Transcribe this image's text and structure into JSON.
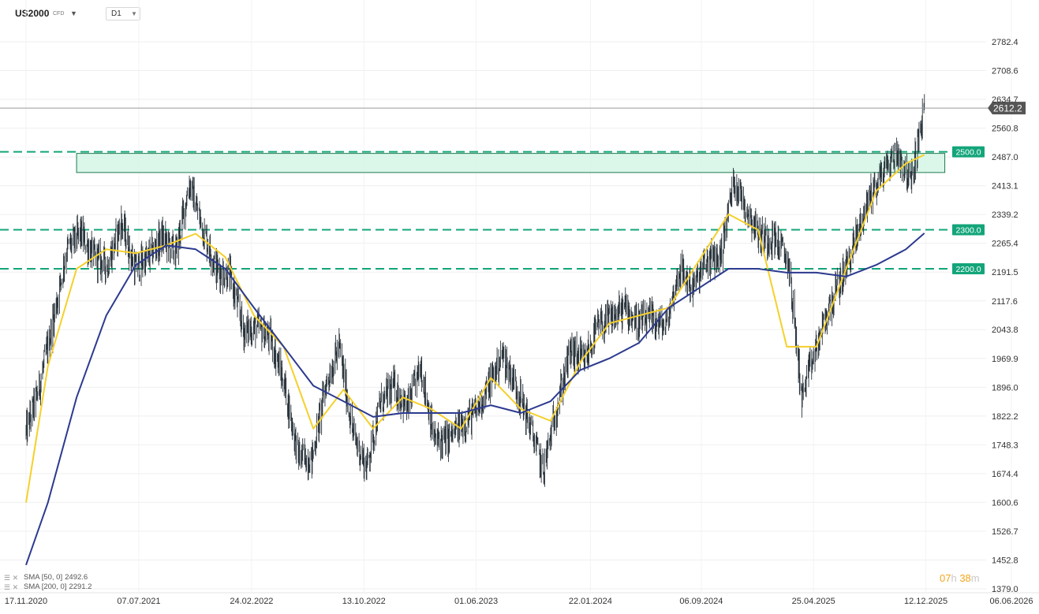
{
  "toolbar": {
    "symbol": "US2000",
    "symbol_type": "CFD",
    "timeframe": "D1"
  },
  "countdown": {
    "hours": "07",
    "hours_unit": "h",
    "minutes": "38",
    "minutes_unit": "m"
  },
  "legend": [
    {
      "label": "SMA [50, 0]",
      "value": "2492.6",
      "color": "#f5d02a"
    },
    {
      "label": "SMA [200, 0]",
      "value": "2291.2",
      "color": "#2c3a8f"
    }
  ],
  "colors": {
    "candles": "#2a343c",
    "sma50": "#f5d02a",
    "sma200": "#2c3a8f",
    "levels": "#13a57a",
    "zone_fill": "#d3f6e6",
    "zone_border": "#1e7a4e",
    "price_tag": "#555555"
  },
  "chart_data": {
    "type": "line",
    "style": "candlestick",
    "timeframe": "D1",
    "x_tick_labels": [
      "17.11.2020",
      "07.07.2021",
      "24.02.2022",
      "13.10.2022",
      "01.06.2023",
      "22.01.2024",
      "06.09.2024",
      "25.04.2025",
      "12.12.2025",
      "06.06.2026"
    ],
    "y_tick_labels": [
      "2782.4",
      "2708.6",
      "2634.7",
      "2560.8",
      "2487.0",
      "2413.1",
      "2339.2",
      "2265.4",
      "2191.5",
      "2117.6",
      "2043.8",
      "1969.9",
      "1896.0",
      "1822.2",
      "1748.3",
      "1674.4",
      "1600.6",
      "1526.7",
      "1452.8",
      "1379.0"
    ],
    "ylim": [
      1379.0,
      2782.4
    ],
    "last_price": "2612.2",
    "levels": [
      {
        "value": 2500.0,
        "label": "2500.0"
      },
      {
        "value": 2300.0,
        "label": "2300.0"
      },
      {
        "value": 2200.0,
        "label": "2200.0"
      }
    ],
    "resistance_zone": {
      "from_date": "2021-03-01",
      "to_date": "2026-01-20",
      "low": 2447,
      "high": 2496
    },
    "series": [
      {
        "name": "Price",
        "dates": [
          "2020-11-17",
          "2020-12-15",
          "2021-01-12",
          "2021-02-09",
          "2021-03-09",
          "2021-04-06",
          "2021-05-04",
          "2021-06-01",
          "2021-06-29",
          "2021-07-27",
          "2021-08-24",
          "2021-09-21",
          "2021-10-19",
          "2021-11-16",
          "2021-12-14",
          "2022-01-11",
          "2022-02-08",
          "2022-03-08",
          "2022-04-05",
          "2022-05-03",
          "2022-05-31",
          "2022-06-28",
          "2022-07-26",
          "2022-08-23",
          "2022-09-20",
          "2022-10-18",
          "2022-11-15",
          "2022-12-13",
          "2023-01-10",
          "2023-02-07",
          "2023-03-07",
          "2023-04-04",
          "2023-05-02",
          "2023-05-30",
          "2023-06-27",
          "2023-07-25",
          "2023-08-22",
          "2023-09-19",
          "2023-10-17",
          "2023-11-14",
          "2023-12-12",
          "2024-01-09",
          "2024-02-06",
          "2024-03-05",
          "2024-04-02",
          "2024-04-30",
          "2024-05-28",
          "2024-06-25",
          "2024-07-23",
          "2024-08-20",
          "2024-09-17",
          "2024-10-15",
          "2024-11-12",
          "2024-12-10",
          "2025-01-07",
          "2025-02-04",
          "2025-03-04",
          "2025-04-01",
          "2025-04-29",
          "2025-05-27",
          "2025-06-24",
          "2025-07-22",
          "2025-08-19",
          "2025-09-16",
          "2025-10-14",
          "2025-11-11",
          "2025-12-09"
        ],
        "values": [
          1780,
          1900,
          2070,
          2250,
          2290,
          2230,
          2210,
          2320,
          2200,
          2230,
          2280,
          2240,
          2420,
          2300,
          2200,
          2180,
          2040,
          2050,
          2020,
          1900,
          1720,
          1710,
          1900,
          2000,
          1780,
          1690,
          1850,
          1900,
          1840,
          1950,
          1760,
          1760,
          1800,
          1830,
          1900,
          1980,
          1900,
          1800,
          1680,
          1850,
          1990,
          1960,
          2050,
          2070,
          2100,
          2060,
          2070,
          2050,
          2200,
          2150,
          2220,
          2230,
          2430,
          2350,
          2280,
          2280,
          2220,
          1870,
          1990,
          2100,
          2180,
          2280,
          2390,
          2450,
          2500,
          2420,
          2612.2
        ]
      },
      {
        "name": "SMA [50, 0]",
        "dates": [
          "2020-11-17",
          "2021-01-01",
          "2021-03-01",
          "2021-05-01",
          "2021-07-01",
          "2021-09-01",
          "2021-11-01",
          "2022-01-01",
          "2022-03-01",
          "2022-05-01",
          "2022-07-01",
          "2022-09-01",
          "2022-11-01",
          "2023-01-01",
          "2023-03-01",
          "2023-05-01",
          "2023-07-01",
          "2023-09-01",
          "2023-11-01",
          "2024-01-01",
          "2024-03-01",
          "2024-05-01",
          "2024-07-01",
          "2024-09-01",
          "2024-11-01",
          "2025-01-01",
          "2025-03-01",
          "2025-05-01",
          "2025-07-01",
          "2025-09-01",
          "2025-11-01",
          "2025-12-09"
        ],
        "values": [
          1600,
          1950,
          2200,
          2250,
          2240,
          2260,
          2290,
          2230,
          2080,
          2000,
          1790,
          1890,
          1790,
          1870,
          1840,
          1790,
          1920,
          1840,
          1810,
          1960,
          2060,
          2080,
          2100,
          2220,
          2340,
          2300,
          2000,
          2000,
          2200,
          2400,
          2470,
          2492.6
        ]
      },
      {
        "name": "SMA [200, 0]",
        "dates": [
          "2020-11-17",
          "2021-01-01",
          "2021-03-01",
          "2021-05-01",
          "2021-07-01",
          "2021-09-01",
          "2021-11-01",
          "2022-01-01",
          "2022-03-01",
          "2022-05-01",
          "2022-07-01",
          "2022-09-01",
          "2022-11-01",
          "2023-01-01",
          "2023-03-01",
          "2023-05-01",
          "2023-07-01",
          "2023-09-01",
          "2023-11-01",
          "2024-01-01",
          "2024-03-01",
          "2024-05-01",
          "2024-07-01",
          "2024-09-01",
          "2024-11-01",
          "2025-01-01",
          "2025-03-01",
          "2025-05-01",
          "2025-07-01",
          "2025-09-01",
          "2025-11-01",
          "2025-12-09"
        ],
        "values": [
          1440,
          1600,
          1870,
          2080,
          2210,
          2260,
          2250,
          2200,
          2100,
          2000,
          1900,
          1860,
          1820,
          1830,
          1830,
          1830,
          1850,
          1830,
          1860,
          1940,
          1970,
          2010,
          2100,
          2150,
          2200,
          2200,
          2190,
          2190,
          2180,
          2210,
          2250,
          2291.2
        ]
      }
    ]
  }
}
